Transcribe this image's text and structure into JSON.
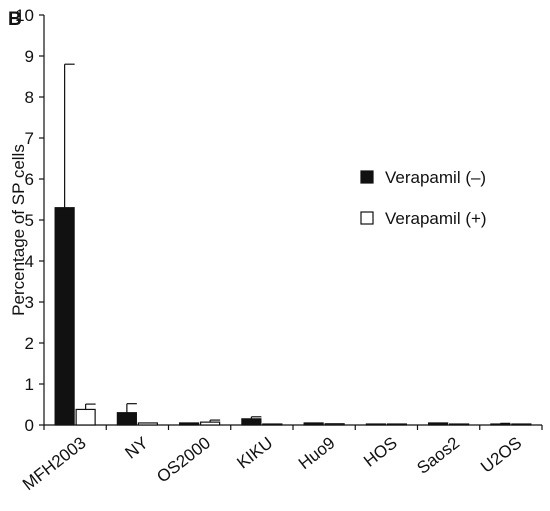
{
  "panel_label": "B",
  "chart_data": {
    "type": "bar",
    "title": "",
    "xlabel": "",
    "ylabel": "Percentage of SP cells",
    "ylim": [
      0,
      10
    ],
    "yticks": [
      "0",
      "1",
      "2",
      "3",
      "4",
      "5",
      "6",
      "7",
      "8",
      "9",
      "10"
    ],
    "categories": [
      "MFH2003",
      "NY",
      "OS2000",
      "KIKU",
      "Huo9",
      "HOS",
      "Saos2",
      "U2OS"
    ],
    "series": [
      {
        "name": "Verapamil (–)",
        "fill": "#111111",
        "values": [
          5.3,
          0.3,
          0.05,
          0.15,
          0.05,
          0.02,
          0.05,
          0.02
        ],
        "error": [
          3.5,
          0.22,
          0.0,
          0.05,
          0.0,
          0.0,
          0.0,
          0.02
        ]
      },
      {
        "name": "Verapamil (+)",
        "fill": "#ffffff",
        "values": [
          0.38,
          0.05,
          0.07,
          0.02,
          0.03,
          0.01,
          0.02,
          0.01
        ],
        "error": [
          0.13,
          0.0,
          0.05,
          0.0,
          0.0,
          0.0,
          0.0,
          0.0
        ]
      }
    ],
    "grid": false,
    "legend_position": "right"
  }
}
